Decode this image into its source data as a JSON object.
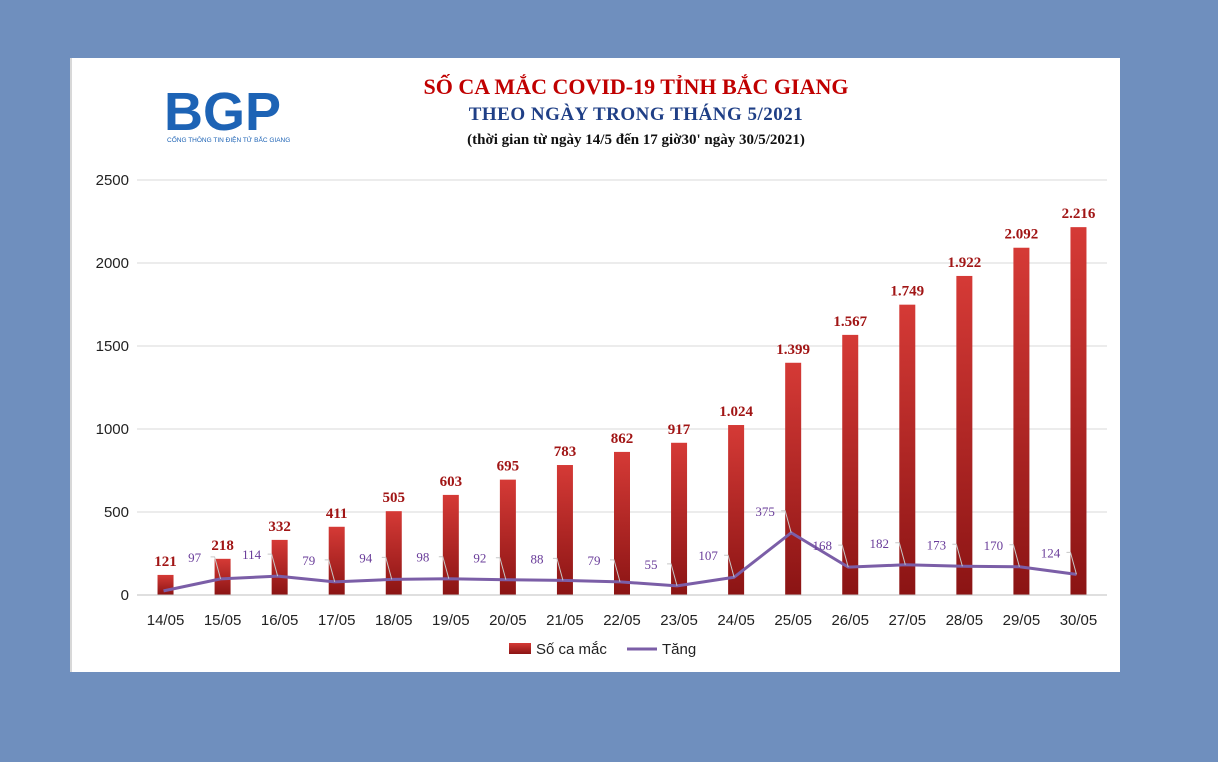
{
  "logo": {
    "text": "BGP",
    "subtitle": "CỔNG THÔNG TIN ĐIỆN TỬ BẮC GIANG"
  },
  "colors": {
    "bar": "#c62828",
    "bar_dark": "#8b1414",
    "line": "#7b5ea7",
    "bar_label": "#a11515",
    "line_label": "#6a3d9a",
    "title": "#c00000",
    "subtitle": "#1f3f86"
  },
  "chart_data": {
    "type": "bar",
    "title": "SỐ CA MẮC COVID-19 TỈNH BẮC GIANG",
    "subtitle": "THEO NGÀY TRONG THÁNG 5/2021",
    "note": "(thời gian từ ngày 14/5 đến 17 giờ30' ngày 30/5/2021)",
    "categories": [
      "14/05",
      "15/05",
      "16/05",
      "17/05",
      "18/05",
      "19/05",
      "20/05",
      "21/05",
      "22/05",
      "23/05",
      "24/05",
      "25/05",
      "26/05",
      "27/05",
      "28/05",
      "29/05",
      "30/05"
    ],
    "ylim": [
      0,
      2500
    ],
    "yticks": [
      0,
      500,
      1000,
      1500,
      2000,
      2500
    ],
    "grid": true,
    "legend_position": "bottom",
    "series": [
      {
        "name": "Số ca mắc",
        "kind": "bar",
        "values": [
          121,
          218,
          332,
          411,
          505,
          603,
          695,
          783,
          862,
          917,
          1024,
          1399,
          1567,
          1749,
          1922,
          2092,
          2216
        ],
        "labels": [
          "121",
          "218",
          "332",
          "411",
          "505",
          "603",
          "695",
          "783",
          "862",
          "917",
          "1.024",
          "1.399",
          "1.567",
          "1.749",
          "1.922",
          "2.092",
          "2.216"
        ]
      },
      {
        "name": "Tăng",
        "kind": "line",
        "values": [
          null,
          97,
          114,
          79,
          94,
          98,
          92,
          88,
          79,
          55,
          107,
          375,
          168,
          182,
          173,
          170,
          124
        ],
        "plot_values": [
          25,
          97,
          114,
          79,
          94,
          98,
          92,
          88,
          79,
          55,
          107,
          375,
          168,
          182,
          173,
          170,
          124
        ],
        "labels": [
          "",
          "97",
          "114",
          "79",
          "94",
          "98",
          "92",
          "88",
          "79",
          "55",
          "107",
          "375",
          "168",
          "182",
          "173",
          "170",
          "124"
        ]
      }
    ]
  }
}
